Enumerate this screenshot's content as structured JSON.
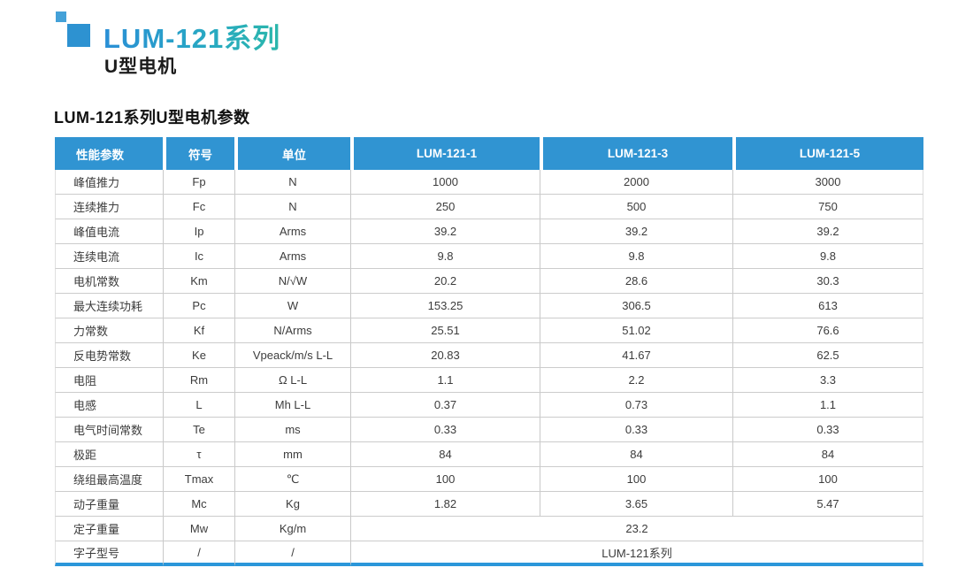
{
  "header": {
    "series_title": "LUM-121系列",
    "subtitle": "U型电机"
  },
  "table_caption": "LUM-121系列U型电机参数",
  "table": {
    "columns": [
      "性能参数",
      "符号",
      "单位",
      "LUM-121-1",
      "LUM-121-3",
      "LUM-121-5"
    ],
    "rows": [
      {
        "param": "峰值推力",
        "symbol": "Fp",
        "unit": "N",
        "values": [
          "1000",
          "2000",
          "3000"
        ]
      },
      {
        "param": "连续推力",
        "symbol": "Fc",
        "unit": "N",
        "values": [
          "250",
          "500",
          "750"
        ]
      },
      {
        "param": "峰值电流",
        "symbol": "Ip",
        "unit": "Arms",
        "values": [
          "39.2",
          "39.2",
          "39.2"
        ]
      },
      {
        "param": "连续电流",
        "symbol": "Ic",
        "unit": "Arms",
        "values": [
          "9.8",
          "9.8",
          "9.8"
        ]
      },
      {
        "param": "电机常数",
        "symbol": "Km",
        "unit": "N/√W",
        "values": [
          "20.2",
          "28.6",
          "30.3"
        ]
      },
      {
        "param": "最大连续功耗",
        "symbol": "Pc",
        "unit": "W",
        "values": [
          "153.25",
          "306.5",
          "613"
        ]
      },
      {
        "param": "力常数",
        "symbol": "Kf",
        "unit": "N/Arms",
        "values": [
          "25.51",
          "51.02",
          "76.6"
        ]
      },
      {
        "param": "反电势常数",
        "symbol": "Ke",
        "unit": "Vpeack/m/s L-L",
        "values": [
          "20.83",
          "41.67",
          "62.5"
        ]
      },
      {
        "param": "电阻",
        "symbol": "Rm",
        "unit": "Ω L-L",
        "values": [
          "1.1",
          "2.2",
          "3.3"
        ]
      },
      {
        "param": "电感",
        "symbol": "L",
        "unit": "Mh L-L",
        "values": [
          "0.37",
          "0.73",
          "1.1"
        ]
      },
      {
        "param": "电气时间常数",
        "symbol": "Te",
        "unit": "ms",
        "values": [
          "0.33",
          "0.33",
          "0.33"
        ]
      },
      {
        "param": "极距",
        "symbol": "τ",
        "unit": "mm",
        "values": [
          "84",
          "84",
          "84"
        ]
      },
      {
        "param": "绕组最高温度",
        "symbol": "Tmax",
        "unit": "℃",
        "values": [
          "100",
          "100",
          "100"
        ]
      },
      {
        "param": "动子重量",
        "symbol": "Mc",
        "unit": "Kg",
        "values": [
          "1.82",
          "3.65",
          "5.47"
        ]
      },
      {
        "param": "定子重量",
        "symbol": "Mw",
        "unit": "Kg/m",
        "values": [
          "23.2"
        ]
      },
      {
        "param": "字子型号",
        "symbol": "/",
        "unit": "/",
        "values": [
          "LUM-121系列"
        ]
      }
    ]
  },
  "icons": {
    "logo": "two-blue-squares"
  },
  "colors": {
    "table_header_blue": "#3094d2",
    "bottom_bar_blue": "#2b97da",
    "title_gradient_start": "#2a8fd6",
    "title_gradient_end": "#2bb7ab",
    "logo_small_square": "#44a1d8",
    "logo_big_square": "#2d92d1",
    "grid_line": "#cccccc",
    "body_text": "#3c3c3c"
  }
}
